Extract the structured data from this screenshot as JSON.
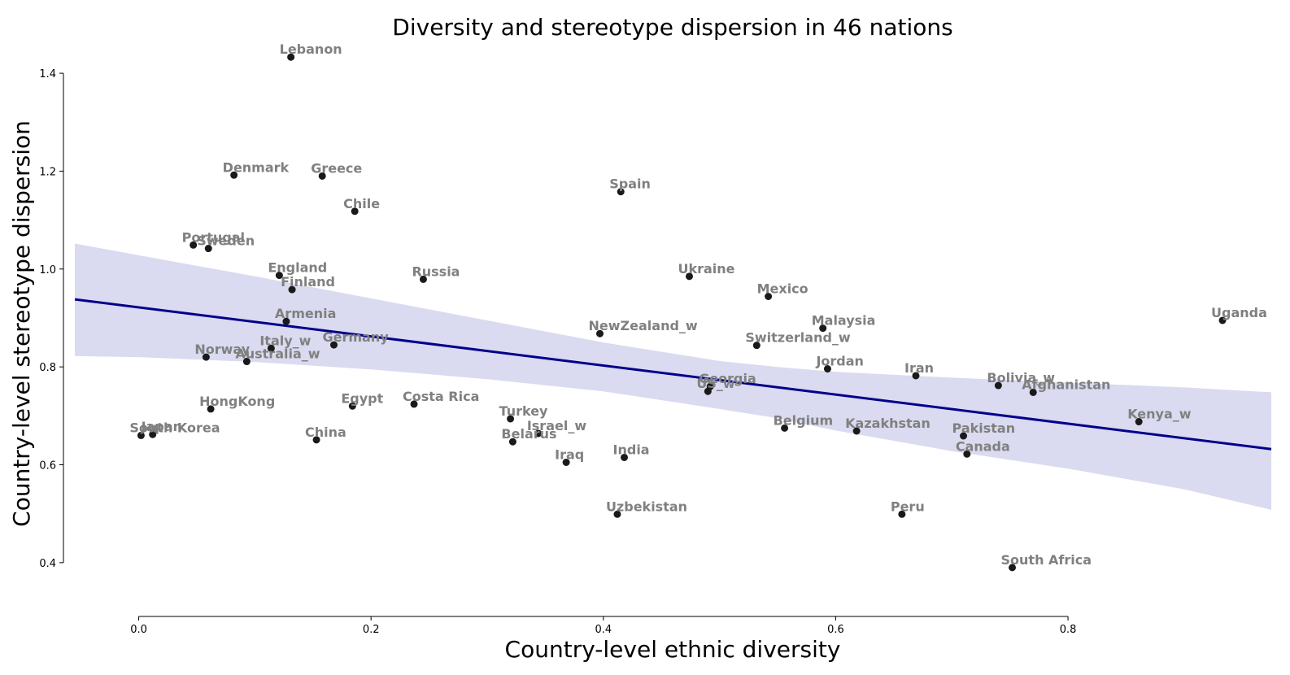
{
  "chart_data": {
    "type": "scatter",
    "title": "Diversity and stereotype dispersion in 46 nations",
    "xlabel": "Country-level ethnic diversity",
    "ylabel": "Country-level stereotype dispersion",
    "xticks": [
      0.0,
      0.2,
      0.4,
      0.6,
      0.8
    ],
    "xtick_labels": [
      "0.0",
      "0.2",
      "0.4",
      "0.6",
      "0.8"
    ],
    "yticks": [
      0.4,
      0.6,
      0.8,
      1.0,
      1.2,
      1.4
    ],
    "ytick_labels": [
      "0.4",
      "0.6",
      "0.8",
      "1.0",
      "1.2",
      "1.4"
    ],
    "xlim": [
      -0.055,
      0.975
    ],
    "ylim": [
      0.32,
      1.45
    ],
    "grid": false,
    "point_color": "#1a1a1a",
    "label_color": "#808080",
    "fit_line_color": "#00008b",
    "ci_band_color": "#dadaf0",
    "regression": {
      "x": [
        -0.055,
        0.975
      ],
      "y": [
        0.938,
        0.632
      ],
      "ci_x": [
        -0.055,
        0.0,
        0.1,
        0.2,
        0.3,
        0.4,
        0.5,
        0.55,
        0.6,
        0.7,
        0.8,
        0.9,
        0.975
      ],
      "ci_upper": [
        1.052,
        1.028,
        0.985,
        0.94,
        0.895,
        0.85,
        0.812,
        0.8,
        0.79,
        0.778,
        0.768,
        0.758,
        0.748
      ],
      "ci_lower": [
        0.822,
        0.82,
        0.81,
        0.795,
        0.775,
        0.75,
        0.714,
        0.695,
        0.67,
        0.628,
        0.592,
        0.55,
        0.508
      ]
    },
    "points": [
      {
        "label": "Lebanon",
        "x": 0.131,
        "y": 1.433
      },
      {
        "label": "Denmark",
        "x": 0.082,
        "y": 1.192
      },
      {
        "label": "Greece",
        "x": 0.158,
        "y": 1.19
      },
      {
        "label": "Chile",
        "x": 0.186,
        "y": 1.118
      },
      {
        "label": "Spain",
        "x": 0.415,
        "y": 1.158
      },
      {
        "label": "Portugal",
        "x": 0.047,
        "y": 1.049
      },
      {
        "label": "Sweden",
        "x": 0.06,
        "y": 1.042
      },
      {
        "label": "England",
        "x": 0.121,
        "y": 0.987
      },
      {
        "label": "Finland",
        "x": 0.132,
        "y": 0.958
      },
      {
        "label": "Russia",
        "x": 0.245,
        "y": 0.979
      },
      {
        "label": "Ukraine",
        "x": 0.474,
        "y": 0.985
      },
      {
        "label": "Mexico",
        "x": 0.542,
        "y": 0.944
      },
      {
        "label": "Uganda",
        "x": 0.933,
        "y": 0.895
      },
      {
        "label": "Armenia",
        "x": 0.127,
        "y": 0.893
      },
      {
        "label": "Malaysia",
        "x": 0.589,
        "y": 0.879
      },
      {
        "label": "NewZealand_w",
        "x": 0.397,
        "y": 0.868
      },
      {
        "label": "Switzerland_w",
        "x": 0.532,
        "y": 0.844
      },
      {
        "label": "Italy_w",
        "x": 0.114,
        "y": 0.838
      },
      {
        "label": "Germany",
        "x": 0.168,
        "y": 0.845
      },
      {
        "label": "Norway",
        "x": 0.058,
        "y": 0.82
      },
      {
        "label": "Australia_w",
        "x": 0.093,
        "y": 0.811
      },
      {
        "label": "Jordan",
        "x": 0.593,
        "y": 0.796
      },
      {
        "label": "Iran",
        "x": 0.669,
        "y": 0.782
      },
      {
        "label": "Georgia",
        "x": 0.492,
        "y": 0.76
      },
      {
        "label": "US_w",
        "x": 0.49,
        "y": 0.75
      },
      {
        "label": "Bolivia_w",
        "x": 0.74,
        "y": 0.762
      },
      {
        "label": "Afghanistan",
        "x": 0.77,
        "y": 0.748
      },
      {
        "label": "HongKong",
        "x": 0.062,
        "y": 0.714
      },
      {
        "label": "Egypt",
        "x": 0.184,
        "y": 0.72
      },
      {
        "label": "Costa Rica",
        "x": 0.237,
        "y": 0.724
      },
      {
        "label": "Kenya_w",
        "x": 0.861,
        "y": 0.688
      },
      {
        "label": "Turkey",
        "x": 0.32,
        "y": 0.694
      },
      {
        "label": "Israel_w",
        "x": 0.344,
        "y": 0.664
      },
      {
        "label": "Belarus",
        "x": 0.322,
        "y": 0.647
      },
      {
        "label": "Belgium",
        "x": 0.556,
        "y": 0.675
      },
      {
        "label": "Kazakhstan",
        "x": 0.618,
        "y": 0.669
      },
      {
        "label": "Pakistan",
        "x": 0.71,
        "y": 0.659
      },
      {
        "label": "Canada",
        "x": 0.713,
        "y": 0.622
      },
      {
        "label": "South Korea",
        "x": 0.002,
        "y": 0.66
      },
      {
        "label": "Japan",
        "x": 0.012,
        "y": 0.662
      },
      {
        "label": "China",
        "x": 0.153,
        "y": 0.651
      },
      {
        "label": "India",
        "x": 0.418,
        "y": 0.615
      },
      {
        "label": "Iraq",
        "x": 0.368,
        "y": 0.605
      },
      {
        "label": "Uzbekistan",
        "x": 0.412,
        "y": 0.499
      },
      {
        "label": "Peru",
        "x": 0.657,
        "y": 0.499
      },
      {
        "label": "South Africa",
        "x": 0.752,
        "y": 0.39
      }
    ]
  }
}
